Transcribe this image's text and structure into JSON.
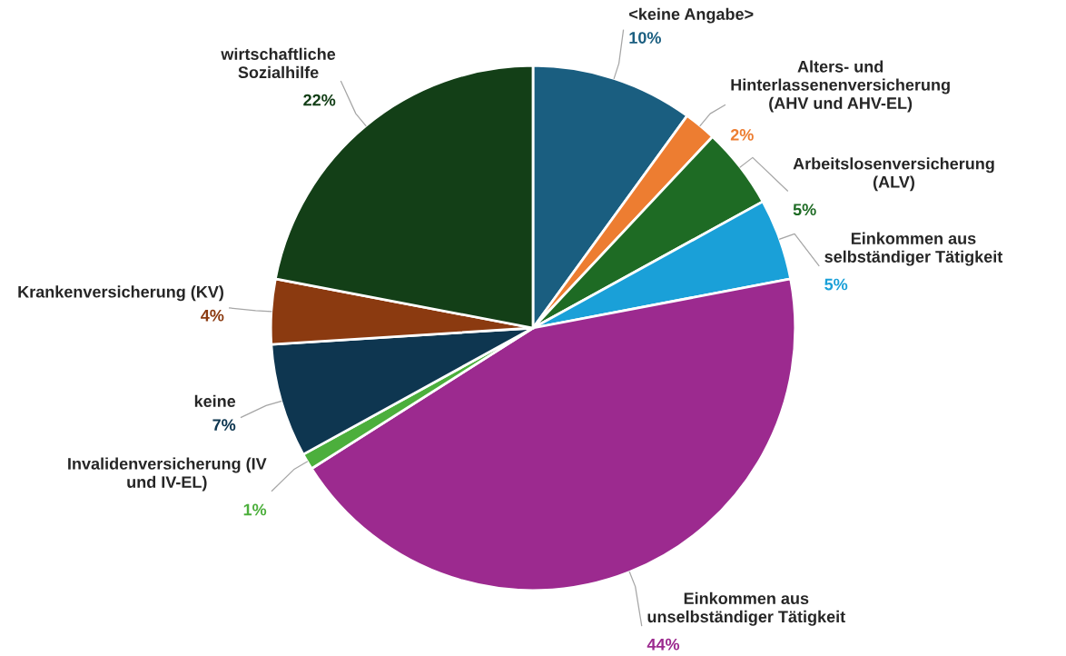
{
  "chart_data": {
    "type": "pie",
    "categories": [
      "<keine Angabe>",
      "Alters- und Hinterlassenenversicherung (AHV und AHV-EL)",
      "Arbeitslosenversicherung (ALV)",
      "Einkommen aus selbständiger Tätigkeit",
      "Einkommen aus unselbständiger Tätigkeit",
      "Invalidenversicherung (IV und IV-EL)",
      "keine",
      "Krankenversicherung (KV)",
      "wirtschaftliche Sozialhilfe"
    ],
    "values": [
      10,
      2,
      5,
      5,
      44,
      1,
      7,
      4,
      22
    ],
    "colors": [
      "#1a5e80",
      "#ed7d31",
      "#1e6b24",
      "#1aa0d8",
      "#9c2a8f",
      "#4caf3c",
      "#0e3650",
      "#8b3a10",
      "#133f17"
    ],
    "value_labels": [
      "10%",
      "2%",
      "5%",
      "5%",
      "44%",
      "1%",
      "7%",
      "4%",
      "22%"
    ]
  }
}
